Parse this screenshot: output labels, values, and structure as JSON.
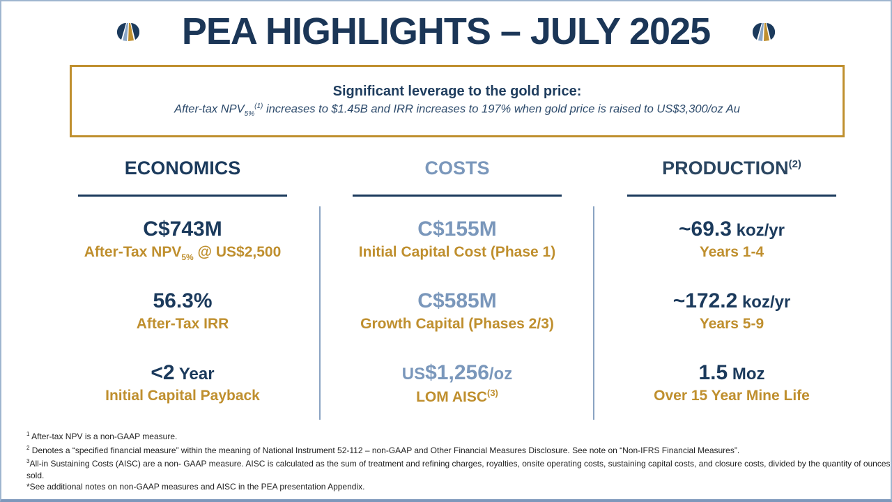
{
  "title": "PEA HIGHLIGHTS – JULY 2025",
  "colors": {
    "navy": "#1b3a5c",
    "gold": "#bf8f2e",
    "light_blue": "#7a97bb"
  },
  "logo_icon": "company-logo",
  "callout": {
    "heading": "Significant leverage to the gold price:",
    "text_pre": "After-tax NPV",
    "text_sub": "5%",
    "text_sup": "(1)",
    "text_post": " increases to $1.45B and IRR increases to 197% when gold price is raised to US$3,300/oz Au"
  },
  "economics": {
    "header": "ECONOMICS",
    "npv": {
      "value": "C$743M",
      "label_pre": "After-Tax NPV",
      "label_sub": "5%",
      "label_post": " @ US$2,500"
    },
    "irr": {
      "value": "56.3%",
      "label": "After-Tax IRR"
    },
    "payback": {
      "value": "<2",
      "unit": " Year",
      "label": "Initial Capital Payback"
    }
  },
  "costs": {
    "header": "COSTS",
    "initial": {
      "value": "C$155M",
      "label": "Initial Capital Cost (Phase 1)"
    },
    "growth": {
      "value": "C$585M",
      "label": "Growth Capital (Phases 2/3)"
    },
    "aisc": {
      "prefix": "US",
      "value": "$1,256",
      "unit": "/oz",
      "label": "LOM AISC",
      "label_sup": "(3)"
    }
  },
  "production": {
    "header": "PRODUCTION",
    "header_sup": "(2)",
    "p1": {
      "value": "~69.3",
      "unit": " koz/yr",
      "label": "Years 1-4"
    },
    "p2": {
      "value": "~172.2",
      "unit": " koz/yr",
      "label": "Years 5-9"
    },
    "p3": {
      "value": "1.5",
      "unit": " Moz",
      "label": "Over 15 Year Mine Life"
    }
  },
  "notes": [
    {
      "mark": "1",
      "text": " After-tax NPV is a non-GAAP measure."
    },
    {
      "mark": "2",
      "text": " Denotes a “specified financial measure” within the meaning of National Instrument 52-112 – non-GAAP and Other Financial Measures Disclosure. See note on “Non-IFRS Financial Measures”."
    },
    {
      "mark": "3",
      "text": "All-in Sustaining Costs (AISC) are a non- GAAP measure. AISC is calculated as the sum of treatment and refining charges, royalties, onsite operating costs, sustaining capital costs, and closure costs, divided by the quantity of ounces sold."
    },
    {
      "mark": "",
      "text": "*See additional notes on non-GAAP measures and AISC in the PEA presentation Appendix."
    }
  ]
}
